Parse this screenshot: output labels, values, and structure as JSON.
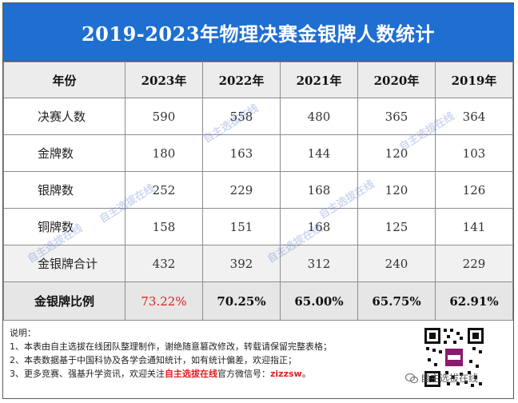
{
  "title": "2019-2023年物理决赛金银牌人数统计",
  "header": [
    "年份",
    "2023年",
    "2022年",
    "2021年",
    "2020年",
    "2019年"
  ],
  "rows": [
    {
      "label": "决赛人数",
      "values": [
        "590",
        "558",
        "480",
        "365",
        "364"
      ]
    },
    {
      "label": "金牌数",
      "values": [
        "180",
        "163",
        "144",
        "120",
        "103"
      ]
    },
    {
      "label": "银牌数",
      "values": [
        "252",
        "229",
        "168",
        "120",
        "126"
      ]
    },
    {
      "label": "铜牌数",
      "values": [
        "158",
        "151",
        "168",
        "125",
        "141"
      ]
    },
    {
      "label": "金银牌合计",
      "values": [
        "432",
        "392",
        "312",
        "240",
        "229"
      ]
    }
  ],
  "ratio_row": {
    "label": "金银牌比例",
    "values": [
      "73.22%",
      "70.25%",
      "65.00%",
      "65.75%",
      "62.91%"
    ]
  },
  "notes": {
    "heading": "说明：",
    "line1": "1、本表由自主选拔在线团队整理制作，谢绝随意篡改修改，转载请保留完整表格；",
    "line2": "2、本表数据基于中国科协及各学会通知统计，如有统计偏差，欢迎指正；",
    "line3_prefix": "3、更多竞赛、强基升学资讯，欢迎关注",
    "line3_brand": "自主选拔在线",
    "line3_mid": "官方微信号：",
    "line3_wechat": "zizzsw",
    "line3_suffix": "。"
  },
  "account_name": "自主选拔在线",
  "watermark_text": "自主选拔在线",
  "colors": {
    "title_bg": "#1f6fd1",
    "highlight": "#e02020"
  }
}
